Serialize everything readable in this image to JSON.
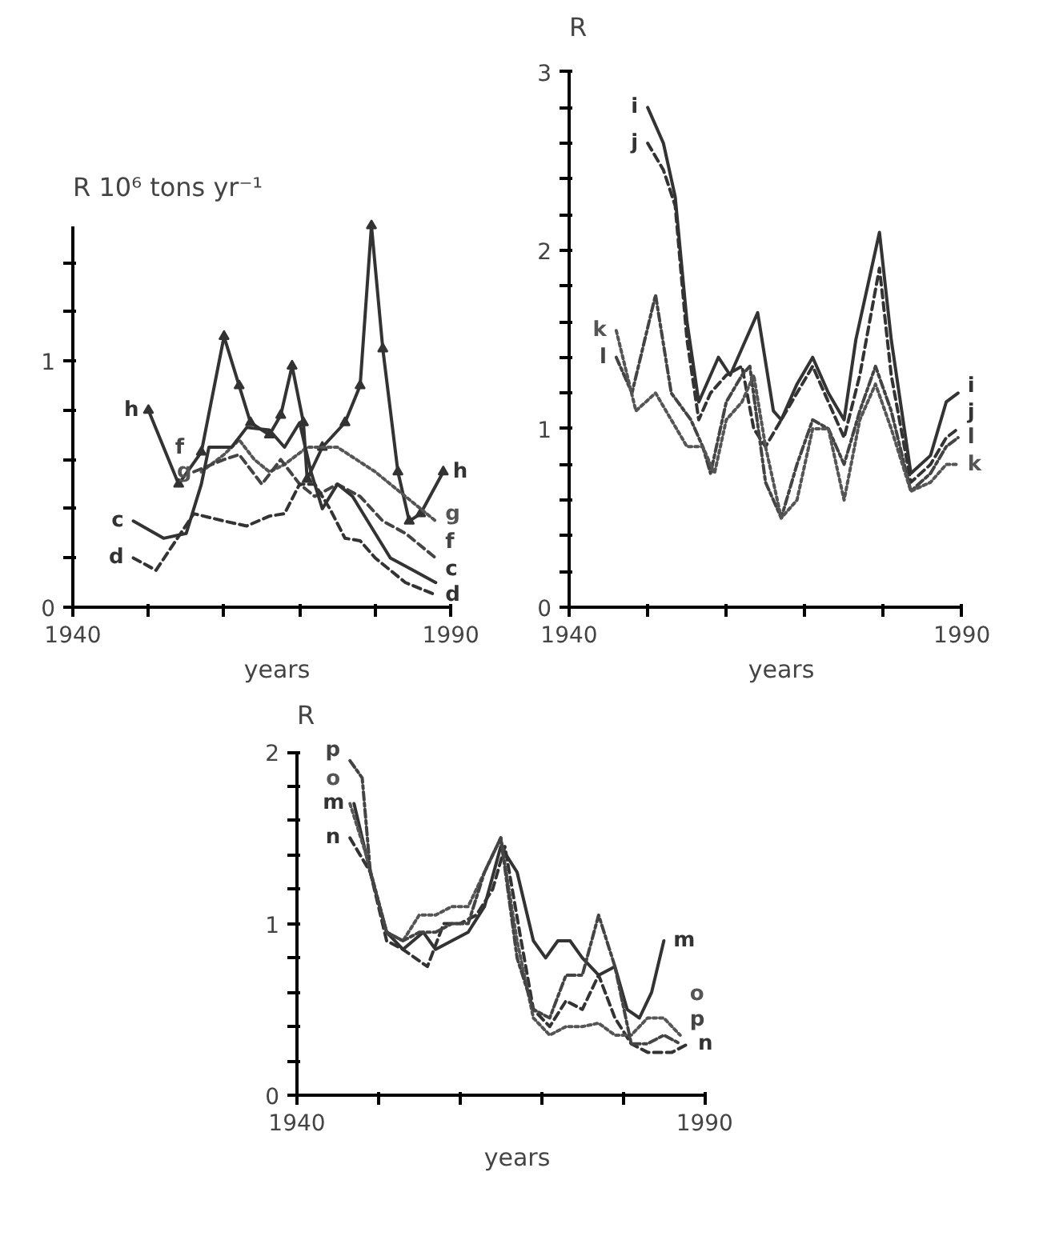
{
  "chart_data": [
    {
      "type": "line",
      "ylabel": "R  10⁶ tons yr⁻¹",
      "xlabel": "years",
      "xlim": [
        1940,
        1990
      ],
      "ylim": [
        0,
        1.55
      ],
      "xticks": [
        1940,
        {
          "value": 1950,
          "label": null
        },
        {
          "value": 1960,
          "label": null
        },
        {
          "value": 1970,
          "label": null
        },
        {
          "value": 1980,
          "label": null
        },
        1990
      ],
      "yticks": [
        0,
        {
          "value": 0.2,
          "label": null
        },
        {
          "value": 0.4,
          "label": null
        },
        {
          "value": 0.6,
          "label": null
        },
        {
          "value": 0.8,
          "label": null
        },
        1,
        {
          "value": 1.2,
          "label": null
        },
        {
          "value": 1.4,
          "label": null
        }
      ],
      "grid": false,
      "series": [
        {
          "name": "h",
          "color": "#333333",
          "line_style": "solid",
          "marker": "triangle",
          "x": [
            1950,
            1954,
            1957,
            1960,
            1962,
            1963.5,
            1966,
            1967.5,
            1969,
            1970.5,
            1971,
            1973,
            1976,
            1978,
            1979.5,
            1981,
            1983,
            1984.5,
            1986,
            1989
          ],
          "values": [
            0.8,
            0.5,
            0.63,
            1.1,
            0.9,
            0.75,
            0.7,
            0.78,
            0.98,
            0.75,
            0.52,
            0.65,
            0.75,
            0.9,
            1.55,
            1.05,
            0.55,
            0.35,
            0.38,
            0.55
          ]
        },
        {
          "name": "g",
          "color": "#555555",
          "line_style": "dotted",
          "x": [
            1957,
            1960,
            1962,
            1964,
            1966,
            1968,
            1971,
            1975,
            1980,
            1984,
            1988
          ],
          "values": [
            0.55,
            0.62,
            0.68,
            0.6,
            0.55,
            0.58,
            0.65,
            0.65,
            0.55,
            0.45,
            0.35
          ]
        },
        {
          "name": "f",
          "color": "#444444",
          "line_style": "dashed",
          "x": [
            1956,
            1960,
            1962,
            1965,
            1967.5,
            1970,
            1972,
            1975,
            1978,
            1981,
            1984,
            1988
          ],
          "values": [
            0.55,
            0.6,
            0.62,
            0.5,
            0.6,
            0.5,
            0.45,
            0.5,
            0.45,
            0.35,
            0.3,
            0.2
          ]
        },
        {
          "name": "c",
          "color": "#333333",
          "line_style": "solid",
          "x": [
            1948,
            1952,
            1955,
            1957,
            1958,
            1961,
            1963,
            1966,
            1968,
            1970,
            1971.5,
            1973,
            1975,
            1977,
            1980,
            1982,
            1985,
            1988
          ],
          "values": [
            0.35,
            0.28,
            0.3,
            0.5,
            0.65,
            0.65,
            0.73,
            0.72,
            0.65,
            0.75,
            0.55,
            0.4,
            0.5,
            0.45,
            0.3,
            0.2,
            0.15,
            0.1
          ]
        },
        {
          "name": "d",
          "color": "#333333",
          "line_style": "dashed",
          "x": [
            1948,
            1951,
            1956,
            1960,
            1963,
            1966,
            1968,
            1970,
            1972,
            1974,
            1976,
            1978,
            1980,
            1984,
            1988
          ],
          "values": [
            0.2,
            0.15,
            0.38,
            0.35,
            0.33,
            0.37,
            0.38,
            0.5,
            0.5,
            0.4,
            0.28,
            0.27,
            0.2,
            0.1,
            0.05
          ]
        }
      ]
    },
    {
      "type": "line",
      "ylabel": "R",
      "xlabel": "years",
      "xlim": [
        1940,
        1990
      ],
      "ylim": [
        0,
        3
      ],
      "xticks": [
        1940,
        {
          "value": 1950,
          "label": null
        },
        {
          "value": 1960,
          "label": null
        },
        {
          "value": 1970,
          "label": null
        },
        {
          "value": 1980,
          "label": null
        },
        1990
      ],
      "yticks": [
        0,
        {
          "value": 0.2,
          "label": null
        },
        {
          "value": 0.4,
          "label": null
        },
        {
          "value": 0.6,
          "label": null
        },
        {
          "value": 0.8,
          "label": null
        },
        1,
        {
          "value": 1.2,
          "label": null
        },
        {
          "value": 1.4,
          "label": null
        },
        {
          "value": 1.6,
          "label": null
        },
        {
          "value": 1.8,
          "label": null
        },
        2,
        {
          "value": 2.2,
          "label": null
        },
        {
          "value": 2.4,
          "label": null
        },
        {
          "value": 2.6,
          "label": null
        },
        {
          "value": 2.8,
          "label": null
        },
        3
      ],
      "grid": false,
      "series": [
        {
          "name": "i",
          "color": "#333333",
          "line_style": "solid",
          "x": [
            1950,
            1952,
            1953.5,
            1955,
            1956.5,
            1958,
            1959,
            1960.5,
            1962,
            1964,
            1966,
            1967,
            1969,
            1971,
            1973,
            1975,
            1976.5,
            1979.5,
            1981,
            1983.5,
            1986,
            1988,
            1989.5
          ],
          "values": [
            2.8,
            2.6,
            2.3,
            1.6,
            1.15,
            1.3,
            1.4,
            1.3,
            1.45,
            1.65,
            1.1,
            1.05,
            1.25,
            1.4,
            1.2,
            1.05,
            1.5,
            2.1,
            1.5,
            0.75,
            0.85,
            1.15,
            1.2
          ]
        },
        {
          "name": "j",
          "color": "#333333",
          "line_style": "dashed",
          "x": [
            1950,
            1952,
            1953.5,
            1955,
            1956.5,
            1958,
            1960,
            1962,
            1963.5,
            1965,
            1967,
            1969,
            1971,
            1973,
            1975,
            1977,
            1979.5,
            1981,
            1983.5,
            1986,
            1988,
            1989.5
          ],
          "values": [
            2.6,
            2.45,
            2.25,
            1.5,
            1.05,
            1.2,
            1.3,
            1.35,
            1.0,
            0.9,
            1.05,
            1.2,
            1.35,
            1.15,
            0.95,
            1.3,
            1.9,
            1.3,
            0.7,
            0.8,
            0.95,
            1.0
          ]
        },
        {
          "name": "l",
          "color": "#444444",
          "line_style": "dashdot",
          "x": [
            1946,
            1948,
            1951,
            1953,
            1955.5,
            1957,
            1958,
            1960,
            1962,
            1963,
            1965,
            1967,
            1969,
            1971,
            1973,
            1975,
            1977,
            1979,
            1981,
            1983.5,
            1986,
            1988,
            1989.5
          ],
          "values": [
            1.4,
            1.2,
            1.75,
            1.2,
            1.05,
            0.9,
            0.75,
            1.15,
            1.3,
            1.35,
            0.7,
            0.5,
            0.8,
            1.05,
            1.0,
            0.8,
            1.1,
            1.35,
            1.1,
            0.65,
            0.75,
            0.9,
            0.95
          ]
        },
        {
          "name": "k",
          "color": "#555555",
          "line_style": "dotted",
          "x": [
            1946,
            1948.5,
            1951,
            1953,
            1955,
            1957,
            1958.5,
            1960,
            1962,
            1963.5,
            1965,
            1967,
            1969,
            1971,
            1973,
            1975,
            1977,
            1979,
            1981,
            1983.5,
            1986,
            1988,
            1989.5
          ],
          "values": [
            1.55,
            1.1,
            1.2,
            1.05,
            0.9,
            0.9,
            0.75,
            1.05,
            1.15,
            1.3,
            0.9,
            0.5,
            0.6,
            1.0,
            1.0,
            0.6,
            1.05,
            1.25,
            1.0,
            0.65,
            0.7,
            0.8,
            0.8
          ]
        }
      ]
    },
    {
      "type": "line",
      "ylabel": "R",
      "xlabel": "years",
      "xlim": [
        1940,
        1990
      ],
      "ylim": [
        0,
        2
      ],
      "xticks": [
        1940,
        {
          "value": 1950,
          "label": null
        },
        {
          "value": 1960,
          "label": null
        },
        {
          "value": 1970,
          "label": null
        },
        {
          "value": 1980,
          "label": null
        },
        1990
      ],
      "yticks": [
        0,
        {
          "value": 0.2,
          "label": null
        },
        {
          "value": 0.4,
          "label": null
        },
        {
          "value": 0.6,
          "label": null
        },
        {
          "value": 0.8,
          "label": null
        },
        1,
        {
          "value": 1.2,
          "label": null
        },
        {
          "value": 1.4,
          "label": null
        },
        {
          "value": 1.6,
          "label": null
        },
        {
          "value": 1.8,
          "label": null
        },
        2
      ],
      "grid": false,
      "series": [
        {
          "name": "m",
          "color": "#333333",
          "line_style": "solid",
          "x": [
            1947,
            1949,
            1951,
            1953,
            1955.5,
            1957,
            1959,
            1961,
            1963,
            1965,
            1967,
            1969,
            1970.5,
            1972,
            1973.5,
            1975,
            1977,
            1979,
            1980.5,
            1982,
            1983.5,
            1985
          ],
          "values": [
            1.7,
            1.3,
            0.95,
            0.85,
            0.95,
            0.85,
            0.9,
            0.95,
            1.1,
            1.45,
            1.3,
            0.9,
            0.8,
            0.9,
            0.9,
            0.8,
            0.7,
            0.75,
            0.5,
            0.45,
            0.6,
            0.9
          ]
        },
        {
          "name": "n",
          "color": "#333333",
          "line_style": "dashed",
          "x": [
            1946.5,
            1949,
            1951,
            1953,
            1956,
            1958,
            1960,
            1962,
            1964,
            1965.5,
            1967.5,
            1969,
            1971,
            1973,
            1975,
            1977,
            1979,
            1981,
            1983,
            1986,
            1988
          ],
          "values": [
            1.5,
            1.3,
            0.9,
            0.85,
            0.75,
            1.0,
            1.0,
            1.05,
            1.2,
            1.45,
            0.9,
            0.5,
            0.4,
            0.55,
            0.5,
            0.7,
            0.45,
            0.3,
            0.25,
            0.25,
            0.3
          ]
        },
        {
          "name": "o",
          "color": "#555555",
          "line_style": "dotted",
          "x": [
            1946.5,
            1948.5,
            1951,
            1953,
            1955,
            1957,
            1959,
            1961,
            1963,
            1965,
            1967,
            1969,
            1971,
            1973,
            1975,
            1977,
            1979,
            1981,
            1983,
            1985,
            1987
          ],
          "values": [
            1.7,
            1.4,
            0.95,
            0.9,
            1.05,
            1.05,
            1.1,
            1.1,
            1.3,
            1.5,
            0.9,
            0.45,
            0.35,
            0.4,
            0.4,
            0.42,
            0.35,
            0.35,
            0.45,
            0.45,
            0.35
          ]
        },
        {
          "name": "p",
          "color": "#444444",
          "line_style": "dashdot",
          "x": [
            1946.5,
            1948,
            1949,
            1951,
            1953,
            1955,
            1957,
            1959,
            1961,
            1963,
            1965,
            1967,
            1969,
            1971,
            1973,
            1975,
            1977,
            1979,
            1981,
            1983,
            1985,
            1987
          ],
          "values": [
            1.95,
            1.85,
            1.3,
            0.95,
            0.9,
            0.95,
            0.95,
            1.0,
            1.0,
            1.3,
            1.5,
            0.8,
            0.5,
            0.45,
            0.7,
            0.7,
            1.05,
            0.75,
            0.3,
            0.3,
            0.35,
            0.3
          ]
        }
      ]
    }
  ]
}
